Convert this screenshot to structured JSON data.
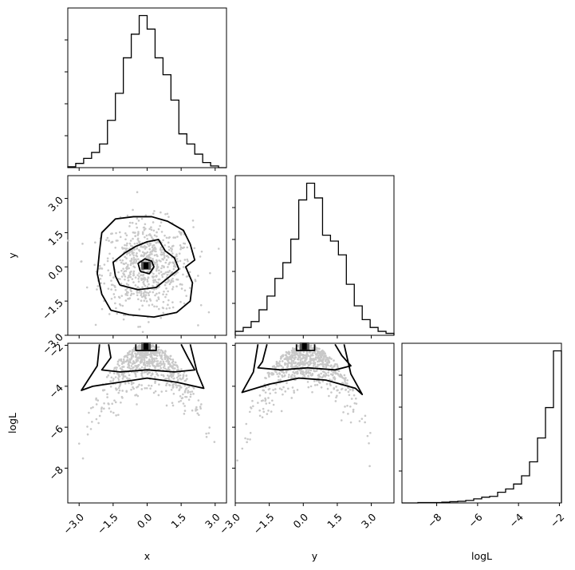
{
  "chart_data": {
    "type": "corner",
    "parameters": [
      "x",
      "y",
      "logL"
    ],
    "axis_labels": {
      "x": "x",
      "y": "y",
      "logL": "logL"
    },
    "ranges": {
      "x": [
        -3.5,
        3.5
      ],
      "y": [
        -3.0,
        4.0
      ],
      "logL": [
        -9.7,
        -1.9
      ]
    },
    "ticks": {
      "x": {
        "values": [
          -3.0,
          -1.5,
          0.0,
          1.5,
          3.0
        ],
        "labels": [
          "−3.0",
          "−1.5",
          "0.0",
          "1.5",
          "3.0"
        ]
      },
      "y": {
        "values": [
          -3.0,
          -1.5,
          0.0,
          1.5,
          3.0
        ],
        "labels": [
          "−3.0",
          "−1.5",
          "0.0",
          "1.5",
          "3.0"
        ]
      },
      "logL": {
        "values": [
          -8,
          -6,
          -4,
          -2
        ],
        "labels": [
          "−8",
          "−6",
          "−4",
          "−2"
        ]
      }
    },
    "histograms": {
      "x": {
        "bin_edges": [
          -3.5,
          -3.15,
          -2.8,
          -2.45,
          -2.1,
          -1.75,
          -1.4,
          -1.05,
          -0.7,
          -0.35,
          0.0,
          0.35,
          0.7,
          1.05,
          1.4,
          1.75,
          2.1,
          2.45,
          2.8,
          3.15,
          3.5
        ],
        "counts": [
          1,
          5,
          11,
          18,
          28,
          56,
          88,
          130,
          158,
          180,
          164,
          130,
          110,
          80,
          40,
          28,
          16,
          6,
          2,
          0
        ]
      },
      "y": {
        "bin_edges": [
          -3.0,
          -2.65,
          -2.3,
          -1.95,
          -1.6,
          -1.25,
          -0.9,
          -0.55,
          -0.2,
          0.15,
          0.5,
          0.85,
          1.2,
          1.55,
          1.9,
          2.25,
          2.6,
          2.95,
          3.3,
          3.65,
          4.0
        ],
        "counts": [
          4,
          8,
          14,
          26,
          40,
          58,
          74,
          98,
          138,
          155,
          140,
          102,
          96,
          82,
          52,
          30,
          16,
          8,
          4,
          2
        ]
      },
      "logL": {
        "bin_edges": [
          -9.7,
          -9.31,
          -8.92,
          -8.53,
          -8.14,
          -7.75,
          -7.36,
          -6.97,
          -6.58,
          -6.19,
          -5.8,
          -5.41,
          -5.02,
          -4.63,
          -4.24,
          -3.85,
          -3.46,
          -3.07,
          -2.68,
          -2.29,
          -1.9
        ],
        "counts": [
          0,
          0,
          1,
          1,
          1,
          2,
          3,
          4,
          6,
          10,
          14,
          16,
          26,
          34,
          46,
          66,
          100,
          158,
          232,
          370
        ]
      }
    },
    "contours": {
      "y_vs_x": [
        {
          "level": "inner",
          "points": [
            [
              -0.3,
              -0.2
            ],
            [
              0.1,
              -0.3
            ],
            [
              0.3,
              0.0
            ],
            [
              0.2,
              0.25
            ],
            [
              -0.1,
              0.35
            ],
            [
              -0.4,
              0.15
            ],
            [
              -0.3,
              -0.2
            ]
          ]
        },
        {
          "level": "mid",
          "points": [
            [
              -1.2,
              -0.8
            ],
            [
              -0.4,
              -1.0
            ],
            [
              0.4,
              -0.9
            ],
            [
              0.9,
              -0.5
            ],
            [
              1.4,
              -0.1
            ],
            [
              1.2,
              0.4
            ],
            [
              0.8,
              0.7
            ],
            [
              0.5,
              1.2
            ],
            [
              0.0,
              1.1
            ],
            [
              -0.5,
              0.9
            ],
            [
              -1.0,
              0.6
            ],
            [
              -1.5,
              0.2
            ],
            [
              -1.4,
              -0.4
            ],
            [
              -1.2,
              -0.8
            ]
          ]
        },
        {
          "level": "outer",
          "points": [
            [
              -1.6,
              -1.9
            ],
            [
              -0.8,
              -2.1
            ],
            [
              0.3,
              -2.2
            ],
            [
              1.3,
              -2.0
            ],
            [
              1.9,
              -1.5
            ],
            [
              2.0,
              -0.7
            ],
            [
              1.7,
              0.0
            ],
            [
              2.1,
              0.3
            ],
            [
              1.9,
              1.0
            ],
            [
              1.6,
              1.6
            ],
            [
              0.9,
              2.0
            ],
            [
              0.2,
              2.2
            ],
            [
              -0.6,
              2.2
            ],
            [
              -1.4,
              2.1
            ],
            [
              -2.0,
              1.5
            ],
            [
              -2.1,
              0.7
            ],
            [
              -2.2,
              -0.3
            ],
            [
              -2.0,
              -1.2
            ],
            [
              -1.6,
              -1.9
            ]
          ]
        }
      ],
      "logL_vs_x": [
        {
          "level": "inner",
          "points": [
            [
              -0.5,
              -1.95
            ],
            [
              -0.5,
              -2.25
            ],
            [
              0.4,
              -2.25
            ],
            [
              0.4,
              -1.95
            ]
          ]
        },
        {
          "level": "mid",
          "points": [
            [
              -1.7,
              -1.95
            ],
            [
              -1.6,
              -2.6
            ],
            [
              -2.0,
              -3.2
            ],
            [
              -1.2,
              -3.3
            ],
            [
              0.0,
              -3.2
            ],
            [
              1.2,
              -3.3
            ],
            [
              2.1,
              -3.2
            ],
            [
              1.8,
              -2.6
            ],
            [
              1.5,
              -1.95
            ]
          ]
        },
        {
          "level": "outer",
          "points": [
            [
              -2.1,
              -1.95
            ],
            [
              -2.2,
              -3.0
            ],
            [
              -2.9,
              -4.2
            ],
            [
              -2.4,
              -4.0
            ],
            [
              -1.2,
              -3.8
            ],
            [
              0.0,
              -3.6
            ],
            [
              1.3,
              -3.8
            ],
            [
              2.5,
              -4.1
            ],
            [
              2.2,
              -3.3
            ],
            [
              1.9,
              -1.95
            ]
          ]
        }
      ],
      "logL_vs_y": [
        {
          "level": "inner",
          "points": [
            [
              -0.3,
              -1.95
            ],
            [
              -0.3,
              -2.25
            ],
            [
              0.5,
              -2.25
            ],
            [
              0.5,
              -1.95
            ]
          ]
        },
        {
          "level": "mid",
          "points": [
            [
              -1.6,
              -1.95
            ],
            [
              -1.8,
              -2.8
            ],
            [
              -2.0,
              -3.1
            ],
            [
              -1.0,
              -3.2
            ],
            [
              0.2,
              -3.1
            ],
            [
              1.4,
              -3.2
            ],
            [
              2.1,
              -3.0
            ],
            [
              1.7,
              -2.5
            ],
            [
              1.4,
              -1.95
            ]
          ]
        },
        {
          "level": "outer",
          "points": [
            [
              -2.0,
              -1.95
            ],
            [
              -2.2,
              -3.3
            ],
            [
              -2.7,
              -4.3
            ],
            [
              -1.5,
              -3.9
            ],
            [
              -0.2,
              -3.6
            ],
            [
              1.0,
              -3.7
            ],
            [
              2.3,
              -4.1
            ],
            [
              2.6,
              -4.4
            ],
            [
              2.1,
              -3.4
            ],
            [
              1.8,
              -1.95
            ]
          ]
        }
      ]
    },
    "density_peaks": {
      "y_vs_x": [
        -0.05,
        0.05
      ],
      "logL_vs_x": [
        -0.05,
        -2.05
      ],
      "logL_vs_y": [
        0.05,
        -2.05
      ]
    },
    "colors": {
      "line": "#000000",
      "points": "#c8c8c8",
      "density": "#000000"
    }
  }
}
